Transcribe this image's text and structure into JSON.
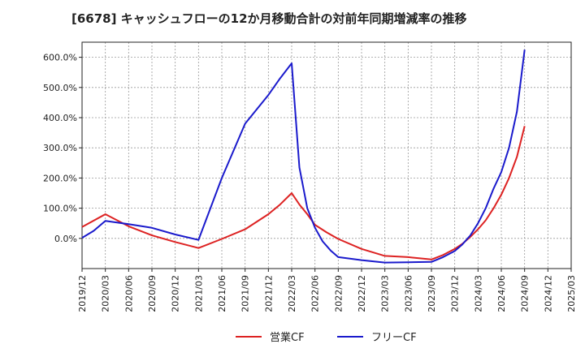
{
  "chart_data": {
    "type": "line",
    "title": "[6678]  キャッシュフローの12か月移動合計の対前年同期増減率の推移",
    "xlabel": "",
    "ylabel": "",
    "ylim": [
      -100,
      650
    ],
    "yticks": [
      0,
      100,
      200,
      300,
      400,
      500,
      600
    ],
    "ytick_labels": [
      "0.0%",
      "100.0%",
      "200.0%",
      "300.0%",
      "400.0%",
      "500.0%",
      "600.0%"
    ],
    "x_labels": [
      "2019/12",
      "2020/03",
      "2020/06",
      "2020/09",
      "2020/12",
      "2021/03",
      "2021/06",
      "2021/09",
      "2021/12",
      "2022/03",
      "2022/06",
      "2022/09",
      "2022/12",
      "2023/03",
      "2023/06",
      "2023/09",
      "2023/12",
      "2024/03",
      "2024/06",
      "2024/09",
      "2024/12",
      "2025/03"
    ],
    "grid": true,
    "legend_position": "bottom-center",
    "series": [
      {
        "name": "営業CF",
        "color": "#dd2222",
        "points": [
          [
            0,
            38
          ],
          [
            1,
            80
          ],
          [
            2,
            40
          ],
          [
            3,
            10
          ],
          [
            4,
            -12
          ],
          [
            5,
            -32
          ],
          [
            6,
            -2
          ],
          [
            7,
            30
          ],
          [
            8,
            80
          ],
          [
            8.5,
            112
          ],
          [
            9,
            150
          ],
          [
            9.33,
            112
          ],
          [
            9.67,
            80
          ],
          [
            10,
            45
          ],
          [
            10.5,
            20
          ],
          [
            11,
            -2
          ],
          [
            12,
            -35
          ],
          [
            13,
            -58
          ],
          [
            14,
            -62
          ],
          [
            15,
            -70
          ],
          [
            15.5,
            -55
          ],
          [
            16,
            -35
          ],
          [
            16.33,
            -18
          ],
          [
            16.67,
            5
          ],
          [
            17,
            30
          ],
          [
            17.33,
            60
          ],
          [
            17.67,
            100
          ],
          [
            18,
            145
          ],
          [
            18.33,
            200
          ],
          [
            18.67,
            270
          ],
          [
            19,
            372
          ]
        ]
      },
      {
        "name": "フリーCF",
        "color": "#1a1acc",
        "points": [
          [
            0,
            2
          ],
          [
            0.5,
            25
          ],
          [
            1,
            58
          ],
          [
            2,
            47
          ],
          [
            3,
            35
          ],
          [
            4,
            13
          ],
          [
            5,
            -5
          ],
          [
            6,
            200
          ],
          [
            7,
            380
          ],
          [
            8,
            475
          ],
          [
            8.5,
            530
          ],
          [
            9,
            580
          ],
          [
            9.33,
            235
          ],
          [
            9.67,
            100
          ],
          [
            10,
            35
          ],
          [
            10.33,
            -10
          ],
          [
            10.67,
            -40
          ],
          [
            11,
            -62
          ],
          [
            12,
            -72
          ],
          [
            13,
            -80
          ],
          [
            14,
            -79
          ],
          [
            15,
            -78
          ],
          [
            15.5,
            -62
          ],
          [
            16,
            -42
          ],
          [
            16.33,
            -20
          ],
          [
            16.67,
            10
          ],
          [
            17,
            50
          ],
          [
            17.33,
            100
          ],
          [
            17.67,
            165
          ],
          [
            18,
            220
          ],
          [
            18.33,
            300
          ],
          [
            18.67,
            420
          ],
          [
            19,
            625
          ]
        ]
      }
    ]
  }
}
